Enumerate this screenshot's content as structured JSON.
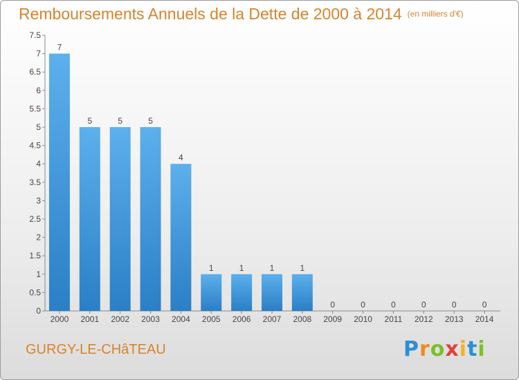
{
  "chart_data": {
    "type": "bar",
    "title": "Remboursements Annuels de la Dette de 2000 à 2014",
    "unit_label": "(en milliers d'€)",
    "categories": [
      "2000",
      "2001",
      "2002",
      "2003",
      "2004",
      "2005",
      "2006",
      "2007",
      "2008",
      "2009",
      "2010",
      "2011",
      "2012",
      "2013",
      "2014"
    ],
    "values": [
      7,
      5,
      5,
      5,
      4,
      1,
      1,
      1,
      1,
      0,
      0,
      0,
      0,
      0,
      0
    ],
    "yticks": [
      "0",
      "0.5",
      "1",
      "1.5",
      "2",
      "2.5",
      "3",
      "3.5",
      "4",
      "4.5",
      "5",
      "5.5",
      "6",
      "6.5",
      "7",
      "7.5"
    ],
    "ylim": [
      0,
      7.5
    ],
    "xlabel": "",
    "ylabel": "",
    "bar_color": "#3d96dc",
    "grid": false
  },
  "footer": {
    "commune": "GURGY-LE-CHâTEAU",
    "brand_letters": [
      "P",
      "r",
      "o",
      "x",
      "i",
      "t",
      "i"
    ],
    "brand_colors": [
      "#2a8fd8",
      "#f08a1a",
      "#7cbf2a",
      "#e0413a",
      "#f2b51d",
      "#2a8fd8",
      "#7cbf2a"
    ]
  }
}
